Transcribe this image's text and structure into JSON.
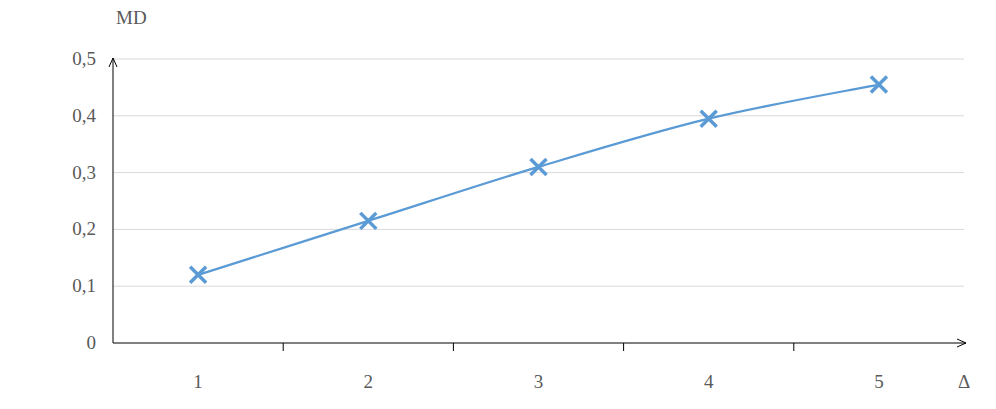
{
  "chart_data": {
    "type": "line",
    "x_label": "Δ",
    "y_label": "MD",
    "categories": [
      "1",
      "2",
      "3",
      "4",
      "5"
    ],
    "values": [
      0.12,
      0.215,
      0.31,
      0.395,
      0.455
    ],
    "color": "#5b9bd5",
    "marker": "x",
    "line_style": "smooth",
    "ylim": [
      0,
      0.5
    ],
    "yticks": [
      0,
      {
        "value": 0.1,
        "label": "0,1"
      },
      {
        "value": 0.2,
        "label": "0,2"
      },
      {
        "value": 0.3,
        "label": "0,3"
      },
      {
        "value": 0.4,
        "label": "0,4"
      },
      {
        "value": 0.5,
        "label": "0,5"
      }
    ],
    "grid": true
  }
}
